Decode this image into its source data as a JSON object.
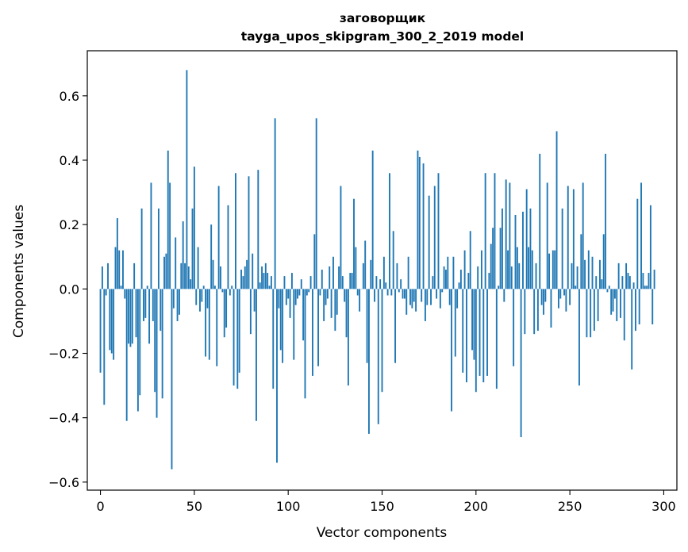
{
  "chart_data": {
    "type": "bar",
    "title": "заговорщик",
    "subtitle": "tayga_upos_skipgram_300_2_2019 model",
    "xlabel": "Vector components",
    "ylabel": "Components values",
    "xlim": [
      -7,
      307
    ],
    "ylim": [
      -0.625,
      0.74
    ],
    "xticks": [
      0,
      50,
      100,
      150,
      200,
      250,
      300
    ],
    "yticks": [
      -0.6,
      -0.4,
      -0.2,
      0.0,
      0.2,
      0.4,
      0.6
    ],
    "ytick_labels": [
      "−0.6",
      "−0.4",
      "−0.2",
      "0.0",
      "0.2",
      "0.4",
      "0.6"
    ],
    "grid": false,
    "bar_color": "#1f77b4",
    "series": [
      {
        "values": [
          -0.26,
          0.07,
          -0.36,
          -0.02,
          0.08,
          -0.19,
          -0.2,
          -0.22,
          0.13,
          0.22,
          0.12,
          0.01,
          0.12,
          -0.03,
          -0.41,
          -0.17,
          -0.18,
          -0.17,
          0.08,
          -0.15,
          -0.38,
          -0.33,
          0.25,
          -0.1,
          -0.09,
          0.01,
          -0.17,
          0.33,
          -0.1,
          -0.32,
          -0.4,
          0.25,
          -0.13,
          -0.34,
          0.1,
          0.11,
          0.43,
          0.33,
          -0.56,
          -0.06,
          0.16,
          -0.1,
          -0.08,
          0.08,
          0.21,
          0.08,
          0.68,
          0.07,
          0.03,
          0.25,
          0.38,
          -0.05,
          0.13,
          -0.07,
          -0.04,
          0.01,
          -0.21,
          -0.06,
          -0.22,
          0.2,
          0.09,
          0.01,
          -0.24,
          0.32,
          0.07,
          -0.01,
          -0.15,
          -0.12,
          0.26,
          -0.02,
          0.01,
          -0.3,
          0.36,
          -0.31,
          -0.26,
          0.06,
          0.04,
          0.07,
          0.09,
          0.35,
          -0.14,
          0.11,
          -0.07,
          -0.41,
          0.37,
          0.02,
          0.07,
          0.05,
          0.08,
          0.05,
          0.01,
          0.04,
          -0.31,
          0.53,
          -0.54,
          -0.06,
          -0.19,
          -0.23,
          0.04,
          -0.05,
          -0.03,
          -0.09,
          0.05,
          -0.22,
          -0.05,
          -0.03,
          -0.02,
          0.03,
          -0.16,
          -0.34,
          -0.02,
          -0.01,
          0.04,
          -0.27,
          0.17,
          0.53,
          -0.24,
          -0.02,
          0.06,
          -0.1,
          -0.05,
          -0.03,
          0.07,
          -0.09,
          0.1,
          -0.13,
          -0.08,
          0.07,
          0.32,
          0.04,
          -0.04,
          -0.15,
          -0.3,
          0.05,
          0.05,
          0.28,
          0.13,
          -0.02,
          -0.07,
          0.0,
          0.08,
          0.15,
          -0.23,
          -0.45,
          0.09,
          0.43,
          -0.04,
          0.04,
          -0.42,
          0.03,
          -0.32,
          0.1,
          0.02,
          -0.02,
          0.36,
          -0.02,
          0.18,
          -0.23,
          0.08,
          -0.01,
          0.03,
          -0.03,
          -0.03,
          -0.08,
          0.1,
          -0.05,
          -0.06,
          -0.04,
          -0.07,
          0.43,
          0.41,
          -0.04,
          0.39,
          -0.1,
          -0.05,
          0.29,
          -0.05,
          0.04,
          0.32,
          -0.03,
          0.36,
          -0.06,
          -0.01,
          0.07,
          0.06,
          0.1,
          -0.05,
          -0.38,
          0.1,
          -0.21,
          -0.06,
          0.02,
          0.06,
          -0.26,
          0.12,
          -0.29,
          0.05,
          0.18,
          -0.19,
          -0.22,
          -0.32,
          0.07,
          -0.27,
          0.12,
          -0.29,
          0.36,
          -0.27,
          0.05,
          0.14,
          0.19,
          0.36,
          -0.31,
          0.01,
          0.19,
          0.25,
          -0.04,
          0.34,
          0.12,
          0.33,
          0.07,
          -0.24,
          0.23,
          0.13,
          0.08,
          -0.46,
          0.24,
          -0.14,
          0.31,
          0.13,
          0.25,
          0.12,
          -0.14,
          0.08,
          -0.13,
          0.42,
          -0.05,
          -0.08,
          -0.04,
          0.33,
          0.11,
          -0.12,
          0.12,
          0.12,
          0.49,
          -0.06,
          -0.03,
          0.25,
          -0.02,
          -0.07,
          0.32,
          -0.05,
          0.08,
          0.31,
          0.01,
          0.07,
          -0.3,
          0.17,
          0.33,
          0.09,
          -0.15,
          0.12,
          -0.15,
          0.1,
          -0.13,
          0.04,
          -0.1,
          0.09,
          0.03,
          0.17,
          0.42,
          -0.01,
          0.01,
          -0.08,
          -0.07,
          -0.03,
          -0.1,
          0.08,
          -0.09,
          0.04,
          -0.16,
          0.08,
          0.05,
          0.04,
          -0.25,
          0.02,
          -0.13,
          0.28,
          -0.11,
          0.33,
          0.05,
          0.01,
          0.01,
          0.05,
          0.26,
          -0.11,
          0.06
        ]
      }
    ]
  }
}
